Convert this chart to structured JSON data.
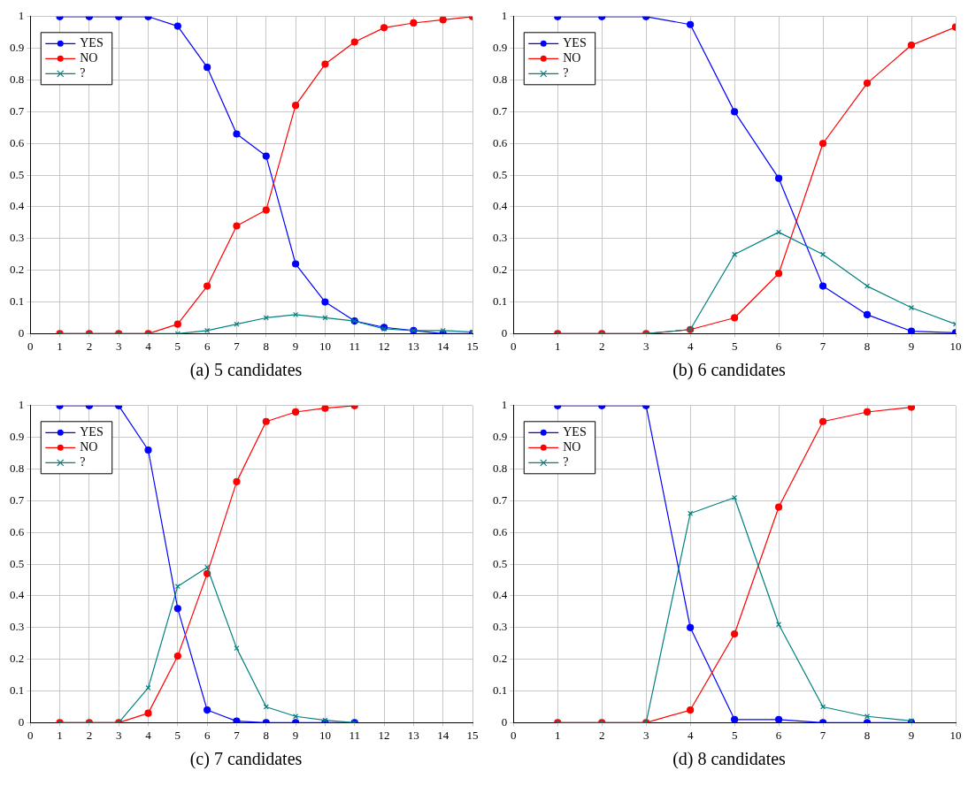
{
  "chart_data": [
    {
      "type": "line",
      "title": "(a) 5 candidates",
      "x": [
        1,
        2,
        3,
        4,
        5,
        6,
        7,
        8,
        9,
        10,
        11,
        12,
        13,
        14,
        15
      ],
      "xlim": [
        0,
        15
      ],
      "xticks": [
        0,
        1,
        2,
        3,
        4,
        5,
        6,
        7,
        8,
        9,
        10,
        11,
        12,
        13,
        14,
        15
      ],
      "ylim": [
        0,
        1
      ],
      "yticks": [
        0,
        0.1,
        0.2,
        0.3,
        0.4,
        0.5,
        0.6,
        0.7,
        0.8,
        0.9,
        1
      ],
      "grid": true,
      "legend": "top left",
      "series": [
        {
          "name": "YES",
          "color": "#0000ff",
          "marker": "circle",
          "values": [
            1,
            1,
            1,
            1,
            0.97,
            0.84,
            0.63,
            0.56,
            0.22,
            0.1,
            0.04,
            0.02,
            0.01,
            0,
            0
          ]
        },
        {
          "name": "NO",
          "color": "#ff0000",
          "marker": "circle",
          "values": [
            0,
            0,
            0,
            0,
            0.03,
            0.15,
            0.34,
            0.39,
            0.72,
            0.85,
            0.92,
            0.965,
            0.98,
            0.99,
            1
          ]
        },
        {
          "name": "?",
          "color": "#008080",
          "marker": "cross",
          "values": [
            0,
            0,
            0,
            0,
            0,
            0.01,
            0.03,
            0.05,
            0.06,
            0.05,
            0.04,
            0.015,
            0.01,
            0.01,
            0.005
          ]
        }
      ]
    },
    {
      "type": "line",
      "title": "(b) 6 candidates",
      "x": [
        1,
        2,
        3,
        4,
        5,
        6,
        7,
        8,
        9,
        10
      ],
      "xlim": [
        0,
        10
      ],
      "xticks": [
        0,
        1,
        2,
        3,
        4,
        5,
        6,
        7,
        8,
        9,
        10
      ],
      "ylim": [
        0,
        1
      ],
      "yticks": [
        0,
        0.1,
        0.2,
        0.3,
        0.4,
        0.5,
        0.6,
        0.7,
        0.8,
        0.9,
        1
      ],
      "grid": true,
      "legend": "top left",
      "series": [
        {
          "name": "YES",
          "color": "#0000ff",
          "marker": "circle",
          "values": [
            1,
            1,
            1,
            0.975,
            0.7,
            0.49,
            0.15,
            0.06,
            0.008,
            0.003
          ]
        },
        {
          "name": "NO",
          "color": "#ff0000",
          "marker": "circle",
          "values": [
            0,
            0,
            0,
            0.013,
            0.05,
            0.19,
            0.6,
            0.79,
            0.91,
            0.967
          ]
        },
        {
          "name": "?",
          "color": "#008080",
          "marker": "cross",
          "values": [
            0,
            0,
            0,
            0.013,
            0.25,
            0.32,
            0.25,
            0.15,
            0.082,
            0.03
          ]
        }
      ]
    },
    {
      "type": "line",
      "title": "(c) 7 candidates",
      "x": [
        1,
        2,
        3,
        4,
        5,
        6,
        7,
        8,
        9,
        10,
        11
      ],
      "xlim": [
        0,
        15
      ],
      "xticks": [
        0,
        1,
        2,
        3,
        4,
        5,
        6,
        7,
        8,
        9,
        10,
        11,
        12,
        13,
        14,
        15
      ],
      "ylim": [
        0,
        1
      ],
      "yticks": [
        0,
        0.1,
        0.2,
        0.3,
        0.4,
        0.5,
        0.6,
        0.7,
        0.8,
        0.9,
        1
      ],
      "grid": true,
      "legend": "top left",
      "series": [
        {
          "name": "YES",
          "color": "#0000ff",
          "marker": "circle",
          "values": [
            1,
            1,
            1,
            0.86,
            0.36,
            0.04,
            0.005,
            0,
            0,
            0,
            0
          ]
        },
        {
          "name": "NO",
          "color": "#ff0000",
          "marker": "circle",
          "values": [
            0,
            0,
            0,
            0.03,
            0.21,
            0.47,
            0.76,
            0.95,
            0.98,
            0.992,
            1
          ]
        },
        {
          "name": "?",
          "color": "#008080",
          "marker": "cross",
          "values": [
            0,
            0,
            0,
            0.11,
            0.43,
            0.49,
            0.235,
            0.05,
            0.02,
            0.008,
            0
          ]
        }
      ]
    },
    {
      "type": "line",
      "title": "(d) 8 candidates",
      "x": [
        1,
        2,
        3,
        4,
        5,
        6,
        7,
        8,
        9
      ],
      "xlim": [
        0,
        10
      ],
      "xticks": [
        0,
        1,
        2,
        3,
        4,
        5,
        6,
        7,
        8,
        9,
        10
      ],
      "ylim": [
        0,
        1
      ],
      "yticks": [
        0,
        0.1,
        0.2,
        0.3,
        0.4,
        0.5,
        0.6,
        0.7,
        0.8,
        0.9,
        1
      ],
      "grid": true,
      "legend": "top left",
      "series": [
        {
          "name": "YES",
          "color": "#0000ff",
          "marker": "circle",
          "values": [
            1,
            1,
            1,
            0.3,
            0.01,
            0.01,
            0,
            0,
            0
          ]
        },
        {
          "name": "NO",
          "color": "#ff0000",
          "marker": "circle",
          "values": [
            0,
            0,
            0,
            0.04,
            0.28,
            0.68,
            0.95,
            0.98,
            0.995
          ]
        },
        {
          "name": "?",
          "color": "#008080",
          "marker": "cross",
          "values": [
            0,
            0,
            0,
            0.66,
            0.71,
            0.31,
            0.05,
            0.02,
            0.006
          ]
        }
      ]
    }
  ]
}
